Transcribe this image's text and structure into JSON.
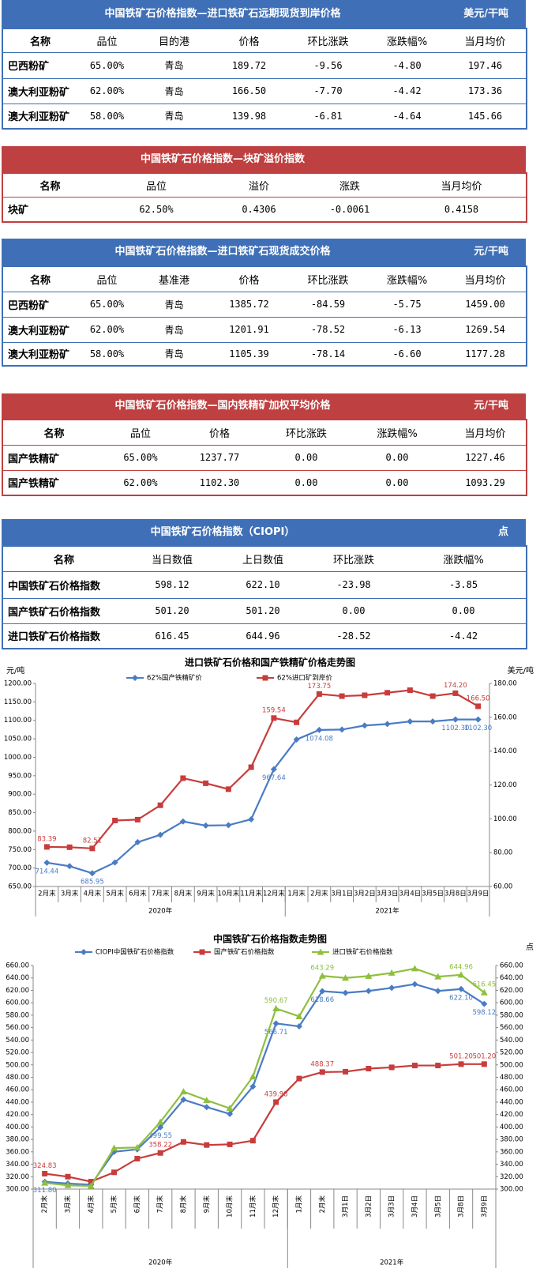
{
  "tables": [
    {
      "title": "中国铁矿石价格指数—进口铁矿石远期现货到岸价格",
      "unit": "美元/干吨",
      "color": "#3f6fb6",
      "headers": [
        "名称",
        "品位",
        "目的港",
        "价格",
        "环比涨跌",
        "涨跌幅%",
        "当月均价"
      ],
      "rows": [
        [
          "巴西粉矿",
          "65.00%",
          "青岛",
          "189.72",
          "-9.56",
          "-4.80",
          "197.46"
        ],
        [
          "澳大利亚粉矿",
          "62.00%",
          "青岛",
          "166.50",
          "-7.70",
          "-4.42",
          "173.36"
        ],
        [
          "澳大利亚粉矿",
          "58.00%",
          "青岛",
          "139.98",
          "-6.81",
          "-4.64",
          "145.66"
        ]
      ]
    },
    {
      "title": "中国铁矿石价格指数—块矿溢价指数",
      "color": "#bf4040",
      "headers": [
        "名称",
        "品位",
        "溢价",
        "涨跌",
        "当月均价"
      ],
      "rows": [
        [
          "块矿",
          "62.50%",
          "0.4306",
          "-0.0061",
          "0.4158"
        ]
      ]
    },
    {
      "title": "中国铁矿石价格指数—进口铁矿石现货成交价格",
      "unit": "元/干吨",
      "color": "#3f6fb6",
      "headers": [
        "名称",
        "品位",
        "基准港",
        "价格",
        "环比涨跌",
        "涨跌幅%",
        "当月均价"
      ],
      "rows": [
        [
          "巴西粉矿",
          "65.00%",
          "青岛",
          "1385.72",
          "-84.59",
          "-5.75",
          "1459.00"
        ],
        [
          "澳大利亚粉矿",
          "62.00%",
          "青岛",
          "1201.91",
          "-78.52",
          "-6.13",
          "1269.54"
        ],
        [
          "澳大利亚粉矿",
          "58.00%",
          "青岛",
          "1105.39",
          "-78.14",
          "-6.60",
          "1177.28"
        ]
      ]
    },
    {
      "title": "中国铁矿石价格指数—国内铁精矿加权平均价格",
      "unit": "元/干吨",
      "color": "#bf4040",
      "headers": [
        "名称",
        "品位",
        "价格",
        "环比涨跌",
        "涨跌幅%",
        "当月均价"
      ],
      "rows": [
        [
          "国产铁精矿",
          "65.00%",
          "1237.77",
          "0.00",
          "0.00",
          "1227.46"
        ],
        [
          "国产铁精矿",
          "62.00%",
          "1102.30",
          "0.00",
          "0.00",
          "1093.29"
        ]
      ]
    },
    {
      "title": "中国铁矿石价格指数（CIOPI）",
      "unit": "点",
      "color": "#3f6fb6",
      "headers": [
        "名称",
        "当日数值",
        "上日数值",
        "环比涨跌",
        "涨跌幅%"
      ],
      "rows": [
        [
          "中国铁矿石价格指数",
          "598.12",
          "622.10",
          "-23.98",
          "-3.85"
        ],
        [
          "国产铁矿石价格指数",
          "501.20",
          "501.20",
          "0.00",
          "0.00"
        ],
        [
          "进口铁矿石价格指数",
          "616.45",
          "644.96",
          "-28.52",
          "-4.42"
        ]
      ]
    }
  ],
  "chart_data": [
    {
      "type": "line",
      "title": "进口铁矿石价格和国产铁精矿价格走势图",
      "y_label": "元/吨",
      "y2_label": "美元/吨",
      "category_groups": [
        {
          "name": "2020年",
          "categories": [
            "2月末",
            "3月末",
            "4月末",
            "5月末",
            "6月末",
            "7月末",
            "8月末",
            "9月末",
            "10月末",
            "11月末",
            "12月末"
          ]
        },
        {
          "name": "2021年",
          "categories": [
            "1月末",
            "2月末",
            "3月1日",
            "3月2日",
            "3月3日",
            "3月4日",
            "3月5日",
            "3月8日",
            "3月9日"
          ]
        }
      ],
      "ylim": [
        650,
        1200
      ],
      "yticks": [
        {
          "value": 650,
          "label": "650.00"
        },
        {
          "value": 700,
          "label": "700.00"
        },
        {
          "value": 750,
          "label": "750.00"
        },
        {
          "value": 800,
          "label": "800.00"
        },
        {
          "value": 850,
          "label": "850.00"
        },
        {
          "value": 900,
          "label": "900.00"
        },
        {
          "value": 950,
          "label": "950.00"
        },
        {
          "value": 1000,
          "label": "1000.00"
        },
        {
          "value": 1050,
          "label": "1050.00"
        },
        {
          "value": 1100,
          "label": "1100.00"
        },
        {
          "value": 1150,
          "label": "1150.00"
        },
        {
          "value": 1200,
          "label": "1200.00"
        }
      ],
      "y2lim": [
        60,
        180
      ],
      "y2ticks": [
        {
          "value": 60,
          "label": "60.00"
        },
        {
          "value": 80,
          "label": "80.00"
        },
        {
          "value": 100,
          "label": "100.00"
        },
        {
          "value": 120,
          "label": "120.00"
        },
        {
          "value": 140,
          "label": "140.00"
        },
        {
          "value": 160,
          "label": "160.00"
        },
        {
          "value": 180,
          "label": "180.00"
        }
      ],
      "series": [
        {
          "name": "62%国产铁精矿价",
          "color": "#4a7cc4",
          "marker": "diamond",
          "values": [
            714.44,
            705,
            685.95,
            715,
            770,
            790,
            826,
            815,
            816,
            832,
            967.64,
            1048,
            1074.08,
            1075,
            1086,
            1090,
            1097,
            1097,
            1102.3,
            1102.3
          ],
          "value_labels": [
            "714.44",
            null,
            "685.95",
            null,
            null,
            null,
            null,
            null,
            null,
            null,
            "967.64",
            null,
            "1074.08",
            null,
            null,
            null,
            null,
            null,
            "1102.30",
            "1102.30"
          ]
        },
        {
          "name": "62%进口矿到岸价",
          "color": "#c83c3c",
          "marker": "square",
          "axis": "y2",
          "values": [
            83.39,
            83.2,
            82.51,
            99,
            99.5,
            108,
            124,
            121,
            117.5,
            130.5,
            159.54,
            157,
            173.75,
            172.5,
            173,
            174.5,
            176,
            172.5,
            174.2,
            166.5
          ],
          "value_labels": [
            "83.39",
            null,
            "82.51",
            null,
            null,
            null,
            null,
            null,
            null,
            null,
            "159.54",
            null,
            "173.75",
            null,
            null,
            null,
            null,
            null,
            "174.20",
            "166.50"
          ]
        }
      ]
    },
    {
      "type": "line",
      "title": "中国铁矿石价格指数走势图",
      "y2_label": "点",
      "category_groups": [
        {
          "name": "2020年",
          "categories": [
            "2月末",
            "3月末",
            "4月末",
            "5月末",
            "6月末",
            "7月末",
            "8月末",
            "9月末",
            "10月末",
            "11月末",
            "12月末"
          ]
        },
        {
          "name": "2021年",
          "categories": [
            "1月末",
            "2月末",
            "3月1日",
            "3月2日",
            "3月3日",
            "3月4日",
            "3月5日",
            "3月8日",
            "3月9日"
          ]
        }
      ],
      "ylim": [
        300,
        660
      ],
      "yticks": [
        {
          "value": 300,
          "label": "300.00"
        },
        {
          "value": 320,
          "label": "320.00"
        },
        {
          "value": 340,
          "label": "340.00"
        },
        {
          "value": 360,
          "label": "360.00"
        },
        {
          "value": 380,
          "label": "380.00"
        },
        {
          "value": 400,
          "label": "400.00"
        },
        {
          "value": 420,
          "label": "420.00"
        },
        {
          "value": 440,
          "label": "440.00"
        },
        {
          "value": 460,
          "label": "460.00"
        },
        {
          "value": 480,
          "label": "480.00"
        },
        {
          "value": 500,
          "label": "500.00"
        },
        {
          "value": 520,
          "label": "520.00"
        },
        {
          "value": 540,
          "label": "540.00"
        },
        {
          "value": 560,
          "label": "560.00"
        },
        {
          "value": 580,
          "label": "580.00"
        },
        {
          "value": 600,
          "label": "600.00"
        },
        {
          "value": 620,
          "label": "620.00"
        },
        {
          "value": 640,
          "label": "640.00"
        },
        {
          "value": 660,
          "label": "660.00"
        }
      ],
      "y2lim": [
        300,
        660
      ],
      "y2ticks": [
        {
          "value": 300,
          "label": "300.00"
        },
        {
          "value": 320,
          "label": "320.00"
        },
        {
          "value": 340,
          "label": "340.00"
        },
        {
          "value": 360,
          "label": "360.00"
        },
        {
          "value": 380,
          "label": "380.00"
        },
        {
          "value": 400,
          "label": "400.00"
        },
        {
          "value": 420,
          "label": "420.00"
        },
        {
          "value": 440,
          "label": "440.00"
        },
        {
          "value": 460,
          "label": "460.00"
        },
        {
          "value": 480,
          "label": "480.00"
        },
        {
          "value": 500,
          "label": "500.00"
        },
        {
          "value": 520,
          "label": "520.00"
        },
        {
          "value": 540,
          "label": "540.00"
        },
        {
          "value": 560,
          "label": "560.00"
        },
        {
          "value": 580,
          "label": "580.00"
        },
        {
          "value": 600,
          "label": "600.00"
        },
        {
          "value": 620,
          "label": "620.00"
        },
        {
          "value": 640,
          "label": "640.00"
        },
        {
          "value": 660,
          "label": "660.00"
        }
      ],
      "series": [
        {
          "name": "CIOPI中国铁矿石价格指数",
          "color": "#4a7cc4",
          "marker": "diamond",
          "values": [
            311.8,
            309,
            307,
            360,
            364,
            399.55,
            444,
            432,
            421,
            465,
            566.71,
            562,
            618.66,
            616,
            619,
            624,
            630,
            619,
            622.1,
            598.12
          ],
          "value_labels": [
            "311.80",
            null,
            null,
            null,
            null,
            "399.55",
            null,
            null,
            null,
            null,
            "566.71",
            null,
            "618.66",
            null,
            null,
            null,
            null,
            null,
            "622.10",
            "598.12"
          ]
        },
        {
          "name": "国产铁矿石价格指数",
          "color": "#c83c3c",
          "marker": "square",
          "values": [
            324.83,
            320,
            312,
            327,
            349,
            358.22,
            376,
            371,
            372,
            378,
            439.98,
            478,
            488.37,
            489,
            494,
            496,
            499,
            499,
            501.2,
            501.2
          ],
          "value_labels": [
            "324.83",
            null,
            null,
            null,
            null,
            "358.22",
            null,
            null,
            null,
            null,
            "439.98",
            null,
            "488.37",
            null,
            null,
            null,
            null,
            null,
            "501.20",
            "501.20"
          ]
        },
        {
          "name": "进口铁矿石价格指数",
          "color": "#8fbf3f",
          "marker": "triangle",
          "values": [
            310,
            306,
            305,
            366,
            367,
            408,
            457,
            443,
            430,
            481,
            590.67,
            578,
            643.29,
            640,
            643,
            648,
            655,
            642,
            644.96,
            616.45
          ],
          "value_labels": [
            null,
            null,
            null,
            null,
            null,
            null,
            null,
            null,
            null,
            null,
            "590.67",
            null,
            "643.29",
            null,
            null,
            null,
            null,
            null,
            "644.96",
            "616.45"
          ]
        }
      ]
    }
  ]
}
